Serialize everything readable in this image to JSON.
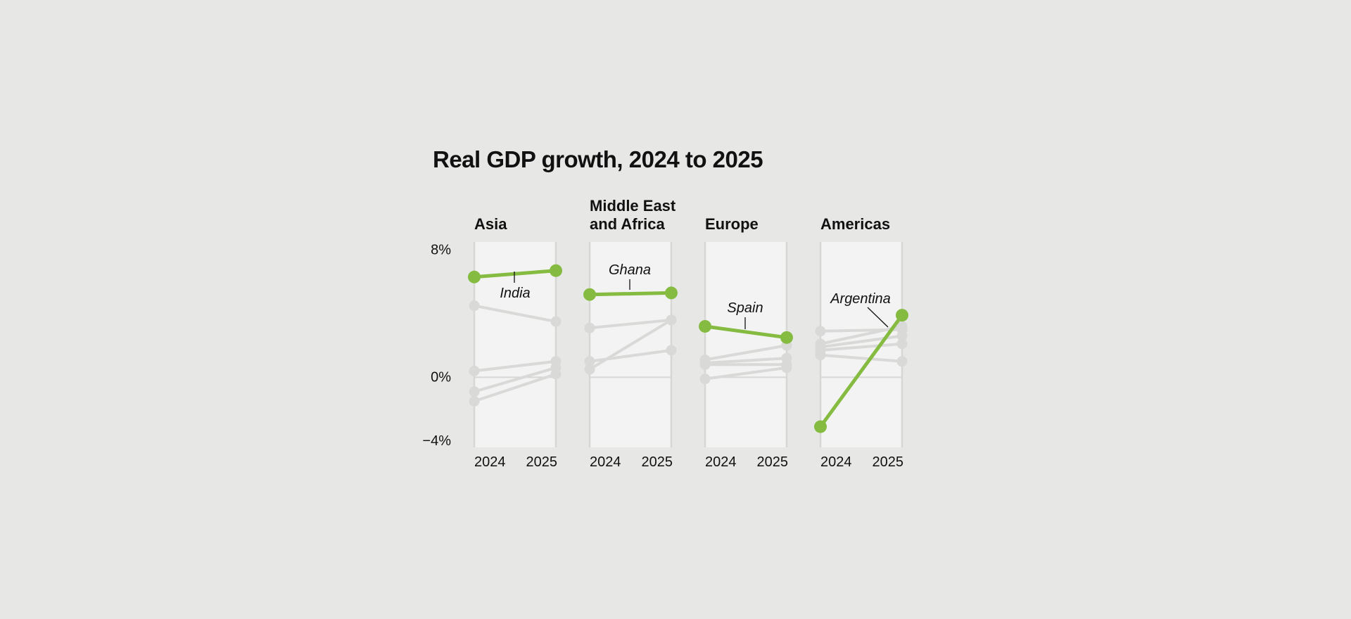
{
  "chart_data": {
    "type": "line",
    "title": "Real GDP growth, 2024 to 2025",
    "x": [
      "2024",
      "2025"
    ],
    "y_ticks": [
      {
        "value": 8,
        "label": "8%"
      },
      {
        "value": 0,
        "label": "0%"
      },
      {
        "value": -4,
        "label": "−4%"
      }
    ],
    "ylim": [
      -4.4,
      8.5
    ],
    "highlight_color": "#85bb41",
    "other_color": "#d9dad8",
    "panel_bg": "#f2f3f2",
    "panels": [
      {
        "label": [
          "Asia"
        ],
        "highlight": {
          "name": "India",
          "values": [
            6.3,
            6.7
          ]
        },
        "others": [
          [
            4.5,
            3.5
          ],
          [
            0.4,
            1.0
          ],
          [
            -0.9,
            0.6
          ],
          [
            -1.5,
            0.2
          ]
        ]
      },
      {
        "label": [
          "Middle East",
          "and Africa"
        ],
        "highlight": {
          "name": "Ghana",
          "values": [
            5.2,
            5.3
          ]
        },
        "others": [
          [
            3.1,
            3.6
          ],
          [
            1.0,
            1.7
          ],
          [
            0.5,
            3.6
          ]
        ]
      },
      {
        "label": [
          "Europe"
        ],
        "highlight": {
          "name": "Spain",
          "values": [
            3.2,
            2.5
          ]
        },
        "others": [
          [
            1.1,
            2.0
          ],
          [
            0.9,
            1.2
          ],
          [
            0.8,
            0.8
          ],
          [
            -0.1,
            0.6
          ]
        ]
      },
      {
        "label": [
          "Americas"
        ],
        "highlight": {
          "name": "Argentina",
          "values": [
            -3.1,
            3.9
          ]
        },
        "others": [
          [
            2.9,
            3.0
          ],
          [
            2.1,
            3.2
          ],
          [
            1.7,
            2.1
          ],
          [
            1.4,
            1.0
          ],
          [
            1.9,
            2.6
          ]
        ]
      }
    ]
  }
}
